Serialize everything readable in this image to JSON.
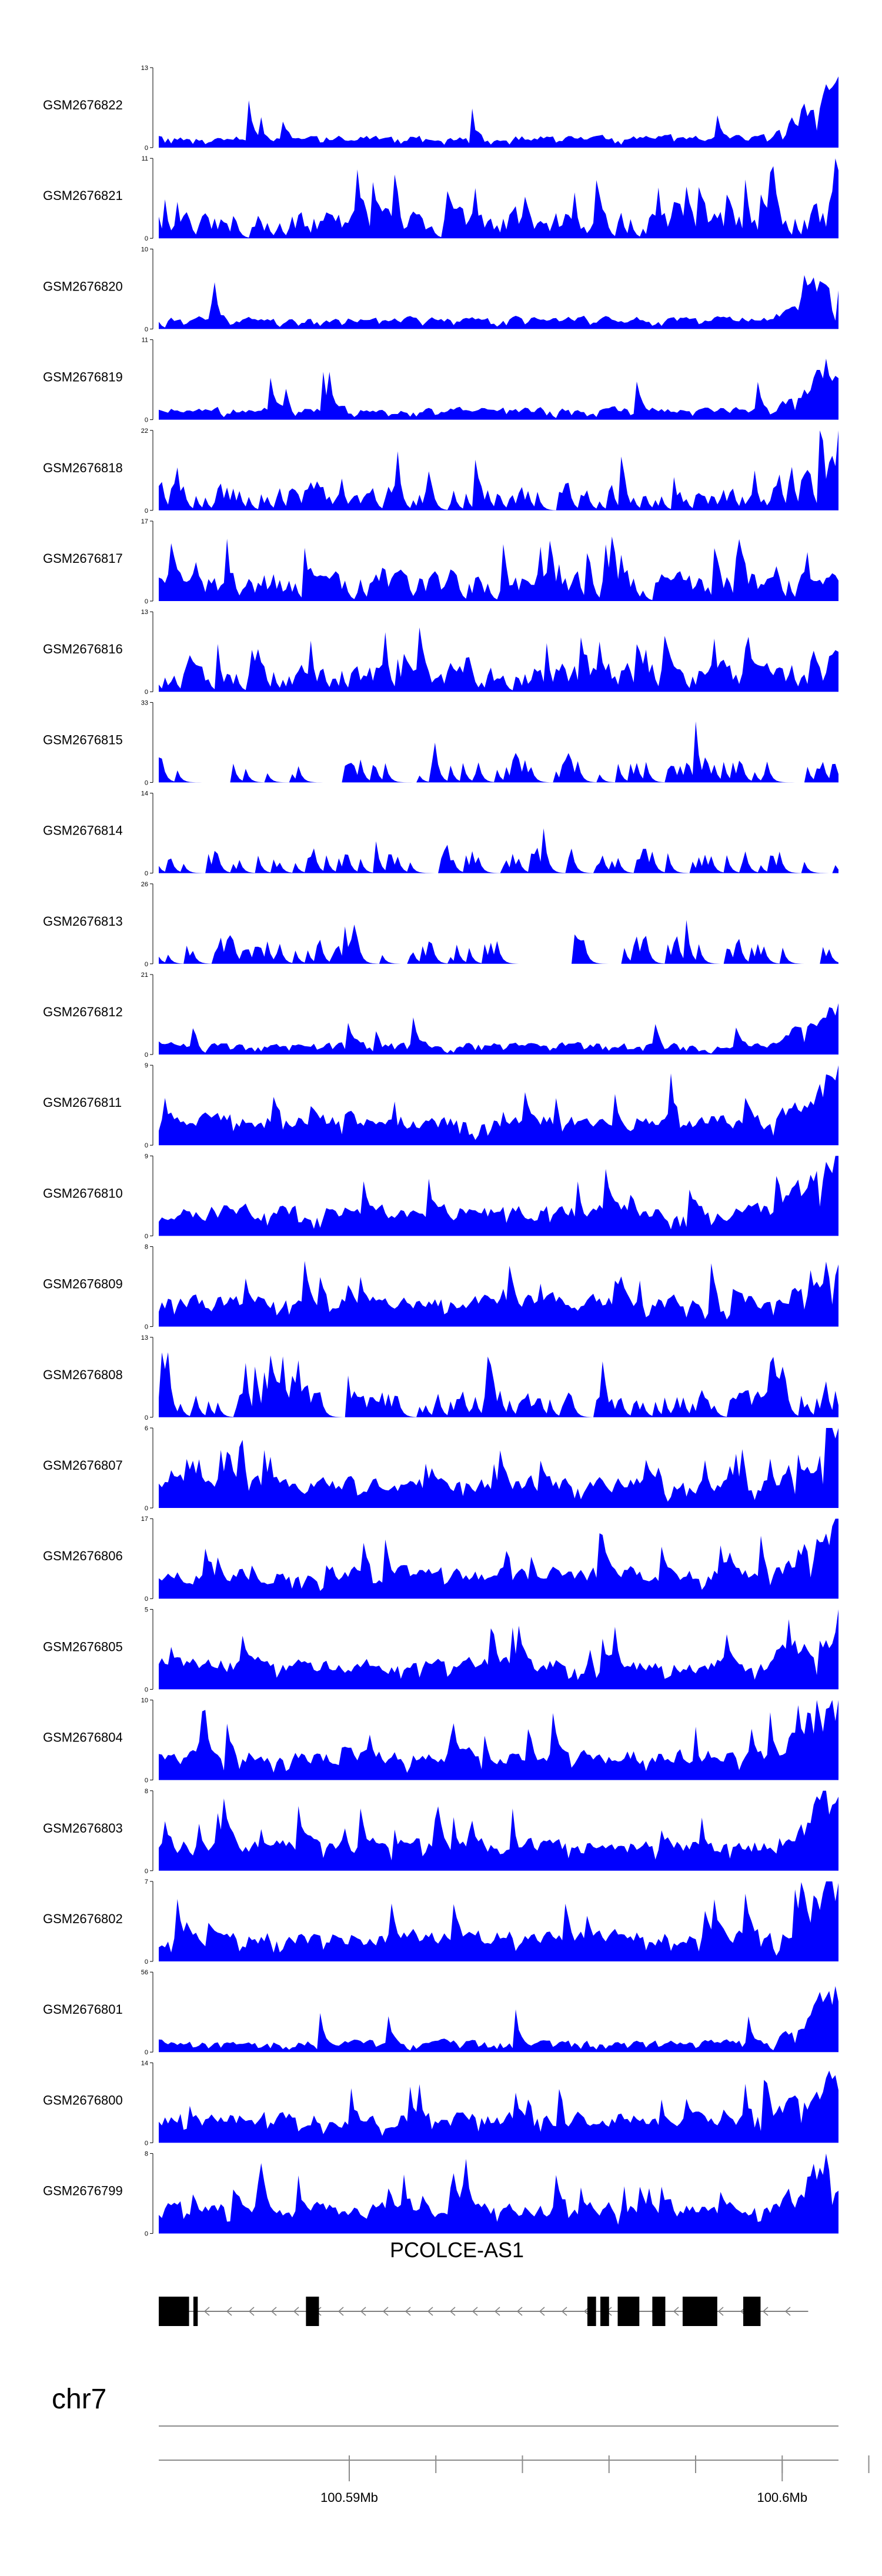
{
  "chart_data": {
    "type": "area",
    "colors": {
      "signal": "#0000ff",
      "axis": "#000000",
      "gene": "#000000",
      "intron": "#7f7f7f"
    },
    "genome": {
      "chromosome": "chr7",
      "range_mb": [
        100.5856,
        100.6013
      ],
      "ticks_mb": [
        100.59,
        100.592,
        100.594,
        100.596,
        100.598,
        100.6,
        100.602,
        100.604,
        100.606
      ],
      "tick_labels": [
        {
          "mb": 100.59,
          "label": "100.59Mb"
        },
        {
          "mb": 100.6,
          "label": "100.6Mb"
        }
      ]
    },
    "gene": {
      "name": "PCOLCE-AS1",
      "strand": "-",
      "span_mb": [
        100.5856,
        100.6006
      ],
      "exons_mb": [
        [
          100.5856,
          100.5863
        ],
        [
          100.5864,
          100.5865
        ],
        [
          100.589,
          100.5893
        ],
        [
          100.5955,
          100.5957
        ],
        [
          100.5958,
          100.596
        ],
        [
          100.5962,
          100.5967
        ],
        [
          100.597,
          100.5973
        ],
        [
          100.5977,
          100.5985
        ],
        [
          100.5991,
          100.5995
        ]
      ]
    },
    "tracks": [
      {
        "name": "GSM2676822",
        "ymax": 13,
        "seed": 22,
        "pattern": "flat",
        "end": "high"
      },
      {
        "name": "GSM2676821",
        "ymax": 11,
        "seed": 21,
        "pattern": "spiky",
        "end": "high"
      },
      {
        "name": "GSM2676820",
        "ymax": 10,
        "seed": 20,
        "pattern": "flat",
        "end": "high"
      },
      {
        "name": "GSM2676819",
        "ymax": 11,
        "seed": 19,
        "pattern": "flat",
        "end": "high"
      },
      {
        "name": "GSM2676818",
        "ymax": 22,
        "seed": 18,
        "pattern": "sparse",
        "end": "high"
      },
      {
        "name": "GSM2676817",
        "ymax": 17,
        "seed": 17,
        "pattern": "spiky",
        "end": "low"
      },
      {
        "name": "GSM2676816",
        "ymax": 13,
        "seed": 16,
        "pattern": "spiky",
        "end": "mid"
      },
      {
        "name": "GSM2676815",
        "ymax": 33,
        "seed": 15,
        "pattern": "very-sparse",
        "end": "low"
      },
      {
        "name": "GSM2676814",
        "ymax": 14,
        "seed": 14,
        "pattern": "very-sparse",
        "end": "low"
      },
      {
        "name": "GSM2676813",
        "ymax": 26,
        "seed": 13,
        "pattern": "very-sparse",
        "end": "low"
      },
      {
        "name": "GSM2676812",
        "ymax": 21,
        "seed": 12,
        "pattern": "flat",
        "end": "high"
      },
      {
        "name": "GSM2676811",
        "ymax": 9,
        "seed": 11,
        "pattern": "dense",
        "end": "high"
      },
      {
        "name": "GSM2676810",
        "ymax": 9,
        "seed": 10,
        "pattern": "dense",
        "end": "high"
      },
      {
        "name": "GSM2676809",
        "ymax": 8,
        "seed": 9,
        "pattern": "dense",
        "end": "high"
      },
      {
        "name": "GSM2676808",
        "ymax": 13,
        "seed": 8,
        "pattern": "sparse",
        "end": "mid"
      },
      {
        "name": "GSM2676807",
        "ymax": 6,
        "seed": 7,
        "pattern": "dense",
        "end": "high"
      },
      {
        "name": "GSM2676806",
        "ymax": 17,
        "seed": 6,
        "pattern": "dense",
        "end": "high"
      },
      {
        "name": "GSM2676805",
        "ymax": 5,
        "seed": 5,
        "pattern": "dense",
        "end": "high"
      },
      {
        "name": "GSM2676804",
        "ymax": 10,
        "seed": 4,
        "pattern": "dense",
        "end": "high"
      },
      {
        "name": "GSM2676803",
        "ymax": 8,
        "seed": 3,
        "pattern": "dense",
        "end": "high"
      },
      {
        "name": "GSM2676802",
        "ymax": 7,
        "seed": 2,
        "pattern": "dense",
        "end": "high"
      },
      {
        "name": "GSM2676801",
        "ymax": 56,
        "seed": 1,
        "pattern": "flat",
        "end": "high"
      },
      {
        "name": "GSM2676800",
        "ymax": 14,
        "seed": 100,
        "pattern": "dense",
        "end": "high"
      },
      {
        "name": "GSM2676799",
        "ymax": 8,
        "seed": 99,
        "pattern": "dense",
        "end": "high"
      }
    ]
  }
}
